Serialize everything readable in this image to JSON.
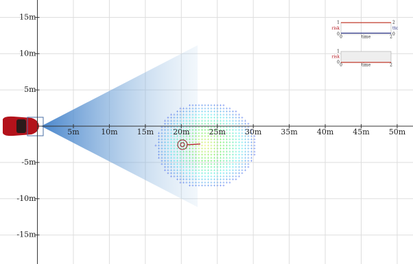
{
  "chart_data": {
    "type": "scene",
    "xlim": [
      -5.2,
      52.2
    ],
    "ylim": [
      -19,
      17.4
    ],
    "xticks": [
      {
        "value": 5,
        "label": "5m"
      },
      {
        "value": 10,
        "label": "10m"
      },
      {
        "value": 15,
        "label": "15m"
      },
      {
        "value": 20,
        "label": "20m"
      },
      {
        "value": 25,
        "label": "25m"
      },
      {
        "value": 30,
        "label": "30m"
      },
      {
        "value": 35,
        "label": "35m"
      },
      {
        "value": 40,
        "label": "40m"
      },
      {
        "value": 45,
        "label": "45m"
      },
      {
        "value": 50,
        "label": "50m"
      }
    ],
    "yticks": [
      {
        "value": -15,
        "label": "-15m"
      },
      {
        "value": -10,
        "label": "-10m"
      },
      {
        "value": -5,
        "label": "-5m"
      },
      {
        "value": 5,
        "label": "5m"
      },
      {
        "value": 10,
        "label": "10m"
      },
      {
        "value": 15,
        "label": "15m"
      }
    ],
    "grid": true,
    "insets": [
      {
        "ylabel": "risk",
        "y2label": "ttc",
        "xlabel": "time",
        "xlim": [
          0,
          2
        ],
        "ylim": [
          0,
          1
        ],
        "y2lim": [
          0,
          2
        ],
        "xticks": [
          0,
          2
        ],
        "yticks": [
          0,
          1
        ],
        "y2ticks": [
          0,
          2
        ],
        "series": [
          {
            "color": "#c0392b",
            "x": [
              0,
              2
            ],
            "values": [
              1,
              1
            ]
          },
          {
            "color": "#1a237e",
            "x": [
              0,
              2
            ],
            "values": [
              0.2,
              0.2
            ],
            "axis": "y2"
          }
        ]
      },
      {
        "ylabel": "risk",
        "xlabel": "time",
        "xlim": [
          0,
          2
        ],
        "ylim": [
          0,
          1
        ],
        "xticks": [
          0,
          2
        ],
        "yticks": [
          0,
          1
        ],
        "series": [
          {
            "color": "#c0392b",
            "x": [
              0,
              2
            ],
            "values": [
              0,
              0
            ]
          }
        ]
      }
    ]
  }
}
